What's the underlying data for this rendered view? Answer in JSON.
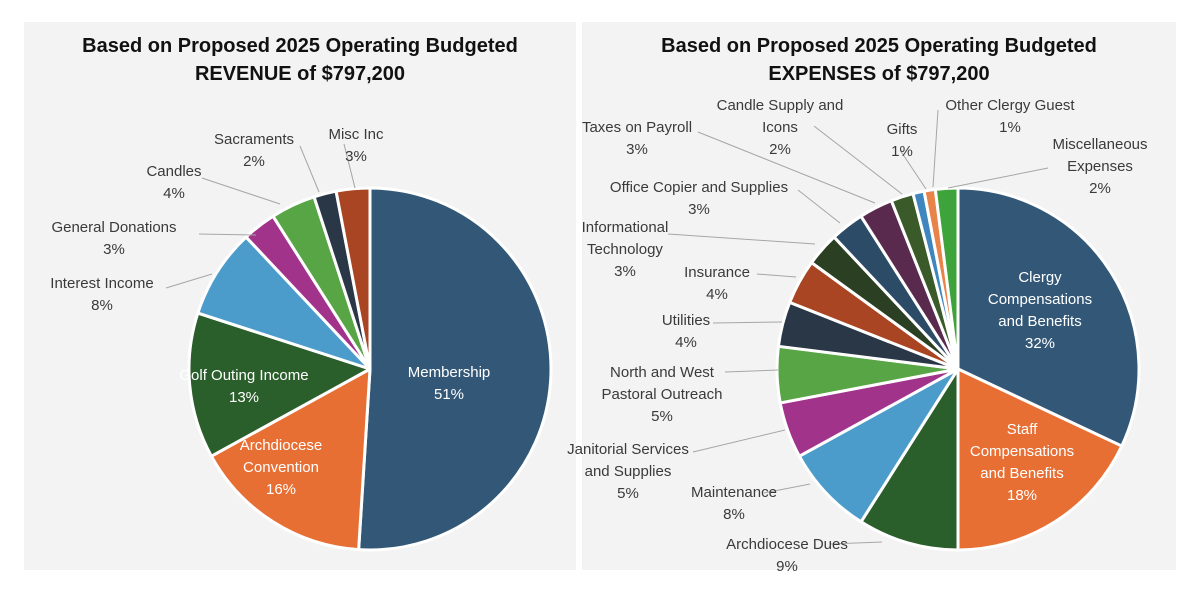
{
  "chart_data": [
    {
      "type": "pie",
      "title_line1": "Based on Proposed 2025 Operating Budgeted",
      "title_line2": "REVENUE of $797,200",
      "slices": [
        {
          "label": "Membership",
          "value": 51,
          "pct": "51%",
          "color": "#335877"
        },
        {
          "label": "Archdiocese Convention",
          "value": 16,
          "pct": "16%",
          "color": "#e86f34"
        },
        {
          "label": "Golf Outing Income",
          "value": 13,
          "pct": "13%",
          "color": "#2a5e2b"
        },
        {
          "label": "Interest Income",
          "value": 8,
          "pct": "8%",
          "color": "#4c9ccb"
        },
        {
          "label": "General Donations",
          "value": 3,
          "pct": "3%",
          "color": "#a1338b"
        },
        {
          "label": "Candles",
          "value": 4,
          "pct": "4%",
          "color": "#58a545"
        },
        {
          "label": "Sacraments",
          "value": 2,
          "pct": "2%",
          "color": "#293747"
        },
        {
          "label": "Misc Inc",
          "value": 3,
          "pct": "3%",
          "color": "#a94522"
        }
      ]
    },
    {
      "type": "pie",
      "title_line1": "Based on Proposed 2025 Operating Budgeted",
      "title_line2": "EXPENSES of $797,200",
      "slices": [
        {
          "label": "Clergy Compensations and Benefits",
          "value": 32,
          "pct": "32%",
          "color": "#335877"
        },
        {
          "label": "Staff Compensations and Benefits",
          "value": 18,
          "pct": "18%",
          "color": "#e86f34"
        },
        {
          "label": "Archdiocese Dues",
          "value": 9,
          "pct": "9%",
          "color": "#2a5e2b"
        },
        {
          "label": "Maintenance",
          "value": 8,
          "pct": "8%",
          "color": "#4c9ccb"
        },
        {
          "label": "Janitorial Services and Supplies",
          "value": 5,
          "pct": "5%",
          "color": "#a1338b"
        },
        {
          "label": "North and West Pastoral Outreach",
          "value": 5,
          "pct": "5%",
          "color": "#58a545"
        },
        {
          "label": "Utilities",
          "value": 4,
          "pct": "4%",
          "color": "#293747"
        },
        {
          "label": "Insurance",
          "value": 4,
          "pct": "4%",
          "color": "#a94522"
        },
        {
          "label": "Informational Technology",
          "value": 3,
          "pct": "3%",
          "color": "#2b3f23"
        },
        {
          "label": "Office Copier and Supplies",
          "value": 3,
          "pct": "3%",
          "color": "#2b4b66"
        },
        {
          "label": "Taxes on Payroll",
          "value": 3,
          "pct": "3%",
          "color": "#5a2a4e"
        },
        {
          "label": "Candle Supply and Icons",
          "value": 2,
          "pct": "2%",
          "color": "#3a5a2a"
        },
        {
          "label": "Gifts",
          "value": 1,
          "pct": "1%",
          "color": "#3f86bf"
        },
        {
          "label": "Other Clergy Guest",
          "value": 1,
          "pct": "1%",
          "color": "#e8834a"
        },
        {
          "label": "Miscellaneous Expenses",
          "value": 2,
          "pct": "2%",
          "color": "#3ea33a"
        }
      ]
    }
  ]
}
